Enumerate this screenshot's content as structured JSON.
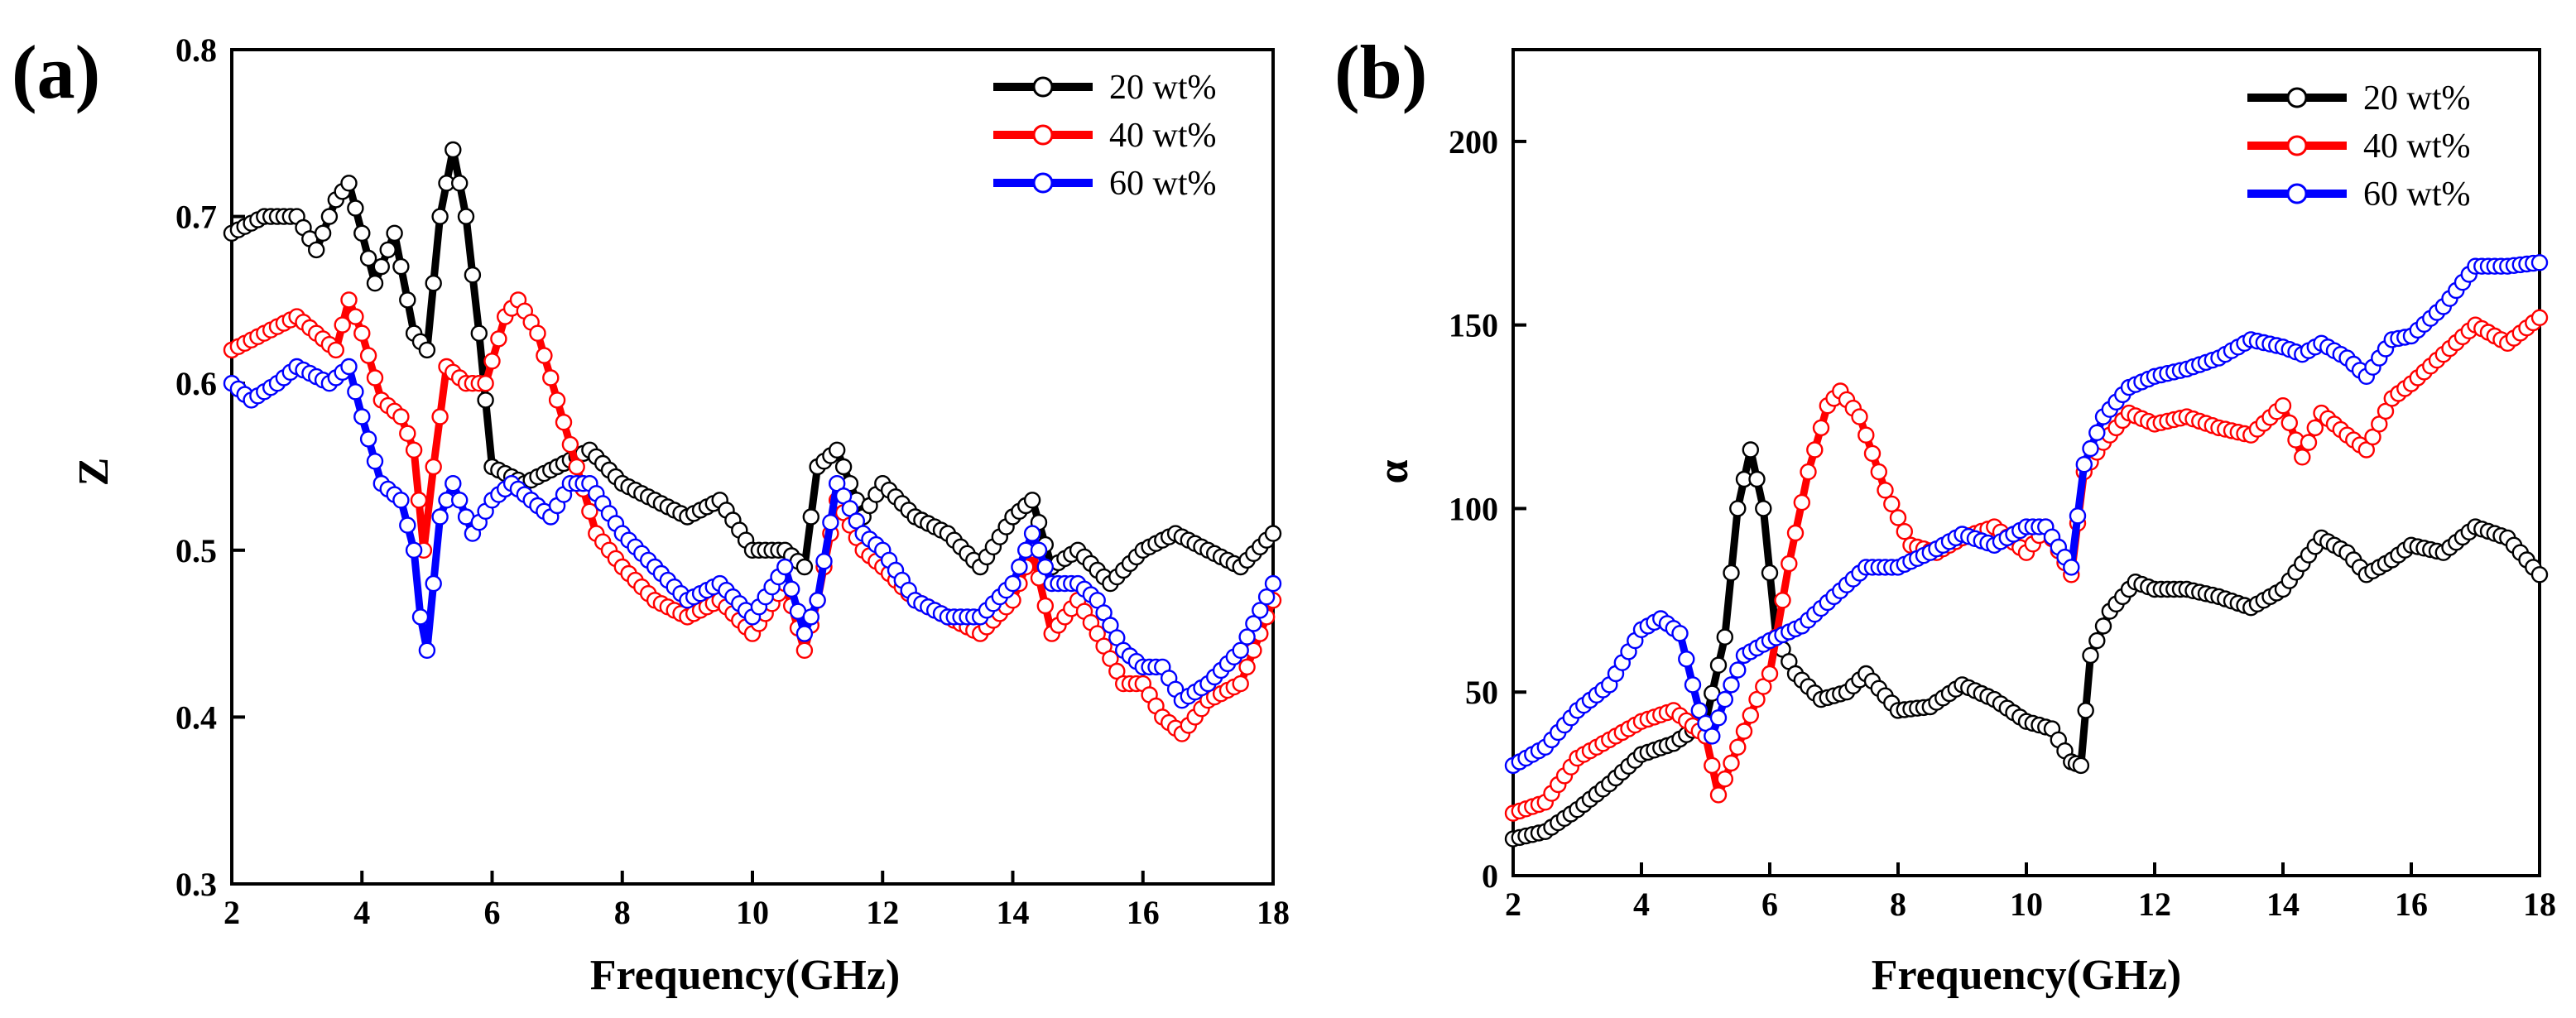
{
  "figure": {
    "panels": [
      {
        "id": "a",
        "label": "(a)"
      },
      {
        "id": "b",
        "label": "(b)"
      }
    ]
  },
  "chart_data": [
    {
      "type": "line",
      "panel": "a",
      "title": "",
      "xlabel": "Frequency(GHz)",
      "ylabel": "Z",
      "xlim": [
        2,
        18
      ],
      "ylim": [
        0.3,
        0.8
      ],
      "xticks": [
        2,
        4,
        6,
        8,
        10,
        12,
        14,
        16,
        18
      ],
      "yticks": [
        0.3,
        0.4,
        0.5,
        0.6,
        0.7,
        0.8
      ],
      "legend_position": "top-right",
      "series": [
        {
          "name": "20 wt%",
          "color": "#000000",
          "fill": "#ffffff",
          "x": [
            2,
            2.5,
            3,
            3.3,
            3.6,
            3.8,
            4.0,
            4.2,
            4.5,
            4.8,
            5.0,
            5.2,
            5.4,
            5.6,
            5.8,
            6.0,
            6.5,
            7.0,
            7.5,
            8.0,
            8.5,
            9.0,
            9.5,
            10,
            10.5,
            10.8,
            11.0,
            11.3,
            11.7,
            12.0,
            12.5,
            13.0,
            13.5,
            14.0,
            14.3,
            14.6,
            15.0,
            15.5,
            16.0,
            16.5,
            17.0,
            17.5,
            18
          ],
          "values": [
            0.69,
            0.7,
            0.7,
            0.68,
            0.71,
            0.72,
            0.69,
            0.66,
            0.69,
            0.63,
            0.62,
            0.7,
            0.74,
            0.7,
            0.63,
            0.55,
            0.54,
            0.55,
            0.56,
            0.54,
            0.53,
            0.52,
            0.53,
            0.5,
            0.5,
            0.49,
            0.55,
            0.56,
            0.52,
            0.54,
            0.52,
            0.51,
            0.49,
            0.52,
            0.53,
            0.49,
            0.5,
            0.48,
            0.5,
            0.51,
            0.5,
            0.49,
            0.51
          ]
        },
        {
          "name": "40 wt%",
          "color": "#ff0000",
          "fill": "#ffffff",
          "x": [
            2,
            2.5,
            3,
            3.3,
            3.6,
            3.8,
            4.0,
            4.3,
            4.6,
            4.8,
            4.95,
            5.1,
            5.3,
            5.6,
            5.9,
            6.2,
            6.4,
            6.7,
            7.0,
            7.3,
            7.6,
            8.0,
            8.5,
            9.0,
            9.5,
            10.0,
            10.5,
            10.8,
            11.0,
            11.3,
            11.7,
            12.0,
            12.5,
            13.0,
            13.5,
            14.0,
            14.3,
            14.6,
            15.0,
            15.3,
            15.7,
            16.0,
            16.3,
            16.6,
            17.0,
            17.5,
            18
          ],
          "values": [
            0.62,
            0.63,
            0.64,
            0.63,
            0.62,
            0.65,
            0.63,
            0.59,
            0.58,
            0.56,
            0.5,
            0.55,
            0.61,
            0.6,
            0.6,
            0.64,
            0.65,
            0.63,
            0.59,
            0.55,
            0.51,
            0.49,
            0.47,
            0.46,
            0.47,
            0.45,
            0.48,
            0.44,
            0.47,
            0.53,
            0.5,
            0.49,
            0.47,
            0.46,
            0.45,
            0.47,
            0.5,
            0.45,
            0.47,
            0.45,
            0.42,
            0.42,
            0.4,
            0.39,
            0.41,
            0.42,
            0.47
          ]
        },
        {
          "name": "60 wt%",
          "color": "#0000ff",
          "fill": "#ffffff",
          "x": [
            2,
            2.3,
            2.7,
            3.0,
            3.5,
            3.8,
            4.0,
            4.3,
            4.6,
            4.8,
            4.9,
            5.0,
            5.2,
            5.4,
            5.7,
            6.0,
            6.3,
            6.6,
            6.9,
            7.2,
            7.5,
            8.0,
            8.5,
            9.0,
            9.5,
            10.0,
            10.5,
            10.8,
            11.0,
            11.3,
            11.7,
            12.0,
            12.5,
            13.0,
            13.5,
            14.0,
            14.3,
            14.6,
            15.0,
            15.3,
            15.7,
            16.0,
            16.3,
            16.6,
            17.0,
            17.5,
            18
          ],
          "values": [
            0.6,
            0.59,
            0.6,
            0.61,
            0.6,
            0.61,
            0.58,
            0.54,
            0.53,
            0.5,
            0.46,
            0.44,
            0.52,
            0.54,
            0.51,
            0.53,
            0.54,
            0.53,
            0.52,
            0.54,
            0.54,
            0.51,
            0.49,
            0.47,
            0.48,
            0.46,
            0.49,
            0.45,
            0.47,
            0.54,
            0.51,
            0.5,
            0.47,
            0.46,
            0.46,
            0.48,
            0.51,
            0.48,
            0.48,
            0.47,
            0.44,
            0.43,
            0.43,
            0.41,
            0.42,
            0.44,
            0.48
          ]
        }
      ]
    },
    {
      "type": "line",
      "panel": "b",
      "title": "",
      "xlabel": "Frequency(GHz)",
      "ylabel": "α",
      "xlim": [
        2,
        18
      ],
      "ylim": [
        0,
        225
      ],
      "xticks": [
        2,
        4,
        6,
        8,
        10,
        12,
        14,
        16,
        18
      ],
      "yticks": [
        0,
        50,
        100,
        150,
        200
      ],
      "legend_position": "top-right",
      "series": [
        {
          "name": "20 wt%",
          "color": "#000000",
          "fill": "#ffffff",
          "x": [
            2,
            2.5,
            3,
            3.5,
            4,
            4.5,
            5,
            5.3,
            5.5,
            5.7,
            5.9,
            6.1,
            6.4,
            6.8,
            7.2,
            7.5,
            8.0,
            8.5,
            9.0,
            9.5,
            10.0,
            10.4,
            10.7,
            10.85,
            11.0,
            11.3,
            11.7,
            12.0,
            12.5,
            13.0,
            13.5,
            14.0,
            14.3,
            14.6,
            15.0,
            15.3,
            15.7,
            16.0,
            16.5,
            17.0,
            17.5,
            18
          ],
          "values": [
            10,
            12,
            18,
            25,
            33,
            36,
            42,
            65,
            100,
            116,
            100,
            65,
            55,
            48,
            50,
            55,
            45,
            46,
            52,
            48,
            42,
            40,
            31,
            30,
            60,
            72,
            80,
            78,
            78,
            76,
            73,
            78,
            85,
            92,
            88,
            82,
            86,
            90,
            88,
            95,
            92,
            82
          ]
        },
        {
          "name": "40 wt%",
          "color": "#ff0000",
          "fill": "#ffffff",
          "x": [
            2,
            2.5,
            3,
            3.5,
            4,
            4.5,
            5,
            5.2,
            5.5,
            5.8,
            6.0,
            6.3,
            6.6,
            6.9,
            7.1,
            7.4,
            7.8,
            8.2,
            8.6,
            9.0,
            9.5,
            10.0,
            10.3,
            10.7,
            10.9,
            11.2,
            11.6,
            12.0,
            12.5,
            13.0,
            13.5,
            14.0,
            14.3,
            14.6,
            15.0,
            15.3,
            15.7,
            16.0,
            16.5,
            17.0,
            17.5,
            18
          ],
          "values": [
            17,
            20,
            32,
            37,
            42,
            45,
            38,
            22,
            35,
            48,
            55,
            85,
            110,
            128,
            132,
            125,
            105,
            90,
            88,
            92,
            95,
            88,
            95,
            82,
            110,
            118,
            126,
            123,
            125,
            122,
            120,
            128,
            114,
            126,
            120,
            116,
            130,
            134,
            142,
            150,
            145,
            152
          ]
        },
        {
          "name": "60 wt%",
          "color": "#0000ff",
          "fill": "#ffffff",
          "x": [
            2,
            2.5,
            3,
            3.5,
            4,
            4.3,
            4.6,
            4.9,
            5.1,
            5.3,
            5.6,
            6.0,
            6.5,
            7.0,
            7.5,
            8.0,
            8.5,
            9.0,
            9.5,
            10.0,
            10.3,
            10.7,
            10.9,
            11.2,
            11.6,
            12.0,
            12.5,
            13.0,
            13.5,
            14.0,
            14.3,
            14.6,
            15.0,
            15.3,
            15.7,
            16.0,
            16.5,
            17.0,
            17.5,
            18
          ],
          "values": [
            30,
            35,
            45,
            52,
            67,
            70,
            66,
            45,
            38,
            48,
            60,
            64,
            68,
            76,
            84,
            84,
            88,
            93,
            90,
            95,
            95,
            84,
            112,
            125,
            133,
            136,
            138,
            141,
            146,
            144,
            142,
            145,
            141,
            136,
            146,
            147,
            155,
            166,
            166,
            167
          ]
        }
      ]
    }
  ]
}
